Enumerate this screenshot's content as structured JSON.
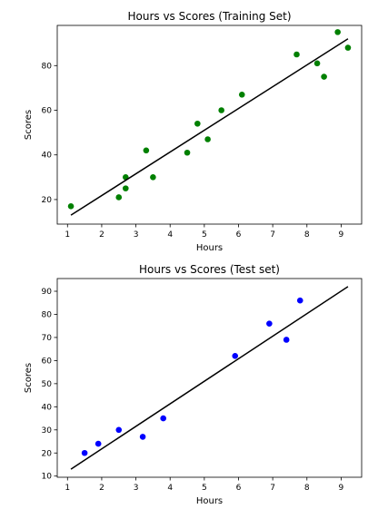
{
  "chart_data": [
    {
      "type": "scatter",
      "title": "Hours vs Scores (Training Set)",
      "xlabel": "Hours",
      "ylabel": "Scores",
      "xlim": [
        0.7,
        9.6
      ],
      "ylim": [
        9,
        98
      ],
      "xticks": [
        1,
        2,
        3,
        4,
        5,
        6,
        7,
        8,
        9
      ],
      "yticks": [
        20,
        40,
        60,
        80
      ],
      "grid": false,
      "point_color": "#008000",
      "line_color": "#000000",
      "points": {
        "x": [
          1.1,
          2.5,
          2.7,
          2.7,
          3.3,
          3.5,
          4.5,
          4.8,
          5.1,
          5.5,
          6.1,
          7.7,
          8.3,
          8.5,
          8.9,
          9.2
        ],
        "y": [
          17,
          21,
          25,
          30,
          42,
          30,
          41,
          54,
          47,
          60,
          67,
          85,
          81,
          75,
          95,
          88
        ]
      },
      "regression_line": {
        "x": [
          1.1,
          9.2
        ],
        "y": [
          13,
          92
        ]
      }
    },
    {
      "type": "scatter",
      "title": "Hours vs Scores (Test set)",
      "xlabel": "Hours",
      "ylabel": "Scores",
      "xlim": [
        0.7,
        9.6
      ],
      "ylim": [
        9.5,
        95.5
      ],
      "xticks": [
        1,
        2,
        3,
        4,
        5,
        6,
        7,
        8,
        9
      ],
      "yticks": [
        10,
        20,
        30,
        40,
        50,
        60,
        70,
        80,
        90
      ],
      "grid": false,
      "point_color": "#0000ff",
      "line_color": "#000000",
      "points": {
        "x": [
          1.5,
          1.9,
          2.5,
          3.2,
          3.8,
          5.9,
          6.9,
          7.4,
          7.8
        ],
        "y": [
          20,
          24,
          30,
          27,
          35,
          62,
          76,
          69,
          86
        ]
      },
      "regression_line": {
        "x": [
          1.1,
          9.2
        ],
        "y": [
          13,
          92
        ]
      }
    }
  ]
}
